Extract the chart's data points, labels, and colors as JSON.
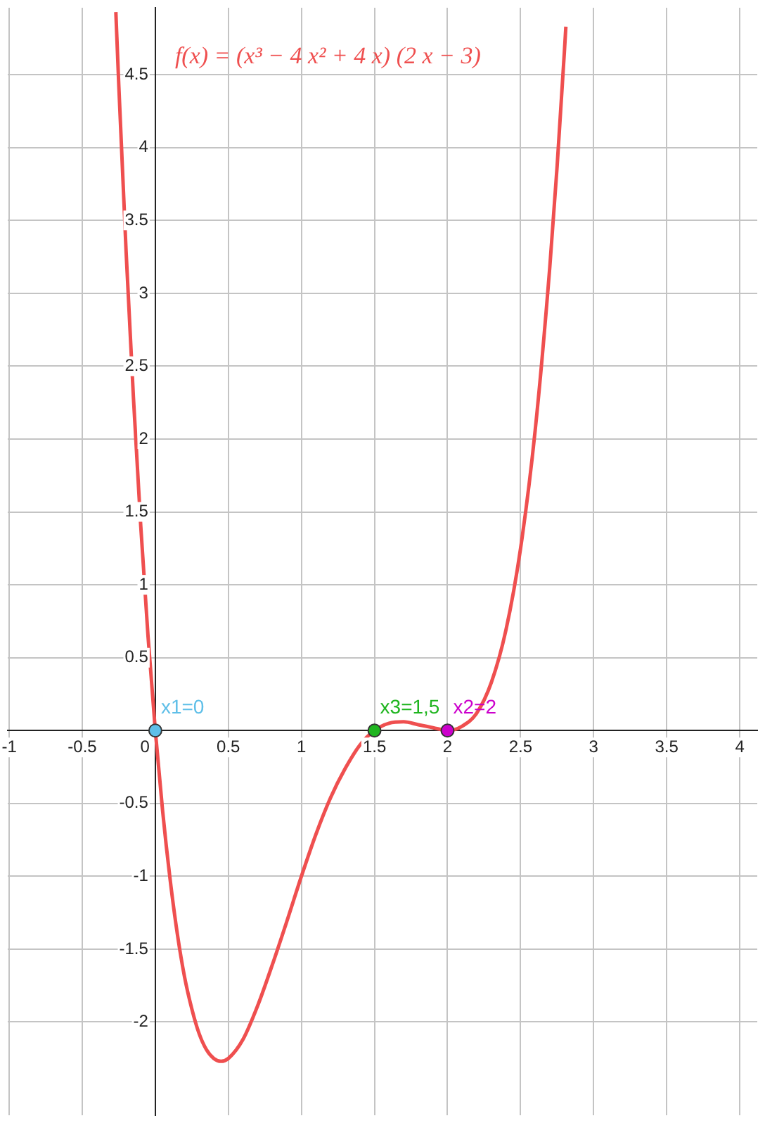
{
  "chart_data": {
    "type": "line",
    "xlim": [
      -1.01,
      4.12
    ],
    "ylim": [
      -2.64,
      4.96
    ],
    "xticks": [
      -1,
      -0.5,
      0,
      0.5,
      1,
      1.5,
      2,
      2.5,
      3,
      3.5,
      4
    ],
    "yticks": [
      -2,
      -1.5,
      -1,
      -0.5,
      {
        "value": 0,
        "label": null
      },
      0.5,
      1,
      1.5,
      2,
      2.5,
      3,
      3.5,
      4,
      4.5
    ],
    "grid": true,
    "legend": false,
    "series": [
      {
        "name": "f(x) = (x³ − 4 x² + 4 x) (2 x − 3)",
        "color": "#ef4f4f",
        "marker": "none",
        "line_style": "solid",
        "x": [
          -0.27,
          -0.25,
          -0.2,
          -0.15,
          -0.1,
          -0.05,
          0,
          0.05,
          0.1,
          0.15,
          0.2,
          0.25,
          0.3,
          0.35,
          0.4,
          0.45,
          0.5,
          0.6,
          0.7,
          0.8,
          0.9,
          1.0,
          1.1,
          1.2,
          1.3,
          1.4,
          1.5,
          1.6,
          1.7,
          1.8,
          1.9,
          2.0,
          2.1,
          2.2,
          2.3,
          2.4,
          2.5,
          2.6,
          2.7,
          2.75,
          2.8,
          2.81
        ],
        "values": [
          4.93,
          4.43,
          3.29,
          2.29,
          1.41,
          0.65,
          0,
          -0.55,
          -1.01,
          -1.39,
          -1.69,
          -1.91,
          -2.08,
          -2.19,
          -2.25,
          -2.27,
          -2.25,
          -2.12,
          -1.89,
          -1.61,
          -1.31,
          -1,
          -0.71,
          -0.46,
          -0.26,
          -0.1,
          0,
          0.05,
          0.06,
          0.04,
          0.02,
          0,
          0.03,
          0.12,
          0.33,
          0.69,
          1.25,
          2.06,
          3.18,
          3.87,
          4.66,
          4.83
        ]
      },
      {
        "name": "x1=0",
        "type": "scatter",
        "color": "#5fbfe8",
        "marker": "circle",
        "x": [
          0
        ],
        "values": [
          0
        ]
      },
      {
        "name": "x3=1,5",
        "type": "scatter",
        "color": "#1fb51f",
        "marker": "circle",
        "x": [
          1.5
        ],
        "values": [
          0
        ]
      },
      {
        "name": "x2=2",
        "type": "scatter",
        "color": "#cc00cc",
        "marker": "circle",
        "x": [
          2
        ],
        "values": [
          0
        ]
      }
    ]
  }
}
